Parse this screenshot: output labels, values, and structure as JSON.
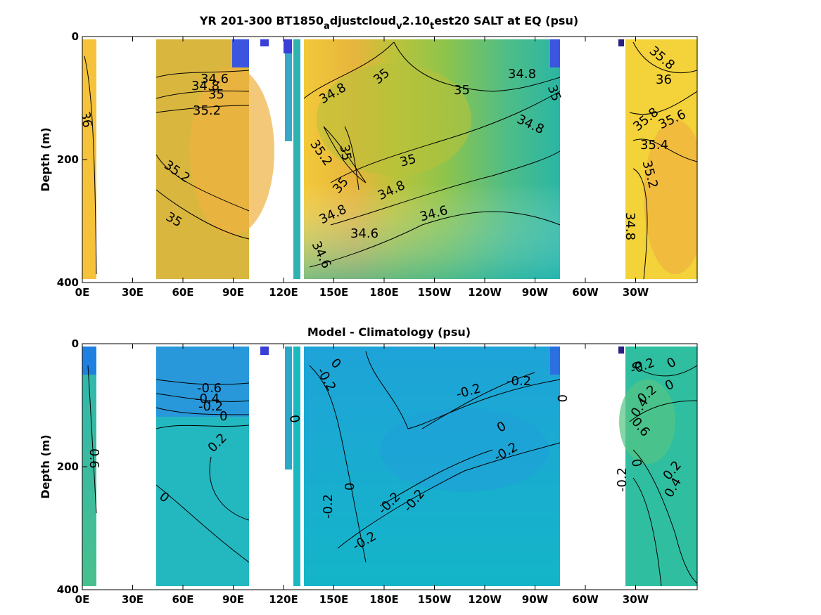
{
  "chart_data": [
    {
      "type": "heatmap",
      "title": "YR 201-300 BT1850_adjustcloud_v2.10_test20 SALT at EQ (psu)",
      "ylabel": "Depth (m)",
      "xticks": [
        "0E",
        "30E",
        "60E",
        "90E",
        "120E",
        "150E",
        "180E",
        "150W",
        "120W",
        "90W",
        "60W",
        "30W"
      ],
      "yticks": [
        0,
        200,
        400
      ],
      "ylim": [
        0,
        400
      ],
      "y_reversed": true,
      "contour_labels": [
        "36",
        "34.6",
        "34.8",
        "35",
        "35.2",
        "35.2",
        "35",
        "34.8",
        "35",
        "34.8",
        "35",
        "35",
        "34.8",
        "35",
        "35.2",
        "35",
        "35",
        "34.8",
        "34.8",
        "34.6",
        "34.6",
        "34.6",
        "35.8",
        "36",
        "35.8",
        "35.6",
        "35.4",
        "35.2",
        "34.8"
      ]
    },
    {
      "type": "heatmap",
      "title": "Model - Climatology (psu)",
      "ylabel": "Depth (m)",
      "xticks": [
        "0E",
        "30E",
        "60E",
        "90E",
        "120E",
        "150E",
        "180E",
        "150W",
        "120W",
        "90W",
        "60W",
        "30W"
      ],
      "yticks": [
        0,
        200,
        400
      ],
      "ylim": [
        0,
        400
      ],
      "y_reversed": true,
      "contour_labels": [
        "0.6",
        "-0.6",
        "-0.4",
        "-0.2",
        "0",
        "0.2",
        "0",
        "0",
        "-0.2",
        "0",
        "0",
        "-0.2",
        "-0.2",
        "-0.2",
        "-0.2",
        "-0.2",
        "-0.2",
        "0",
        "0",
        "-0.2",
        "0",
        "0",
        "-0.2",
        "0",
        "0.2",
        "0.4",
        "0.6",
        "0",
        "-0.2",
        "0.2",
        "0.4"
      ]
    }
  ]
}
